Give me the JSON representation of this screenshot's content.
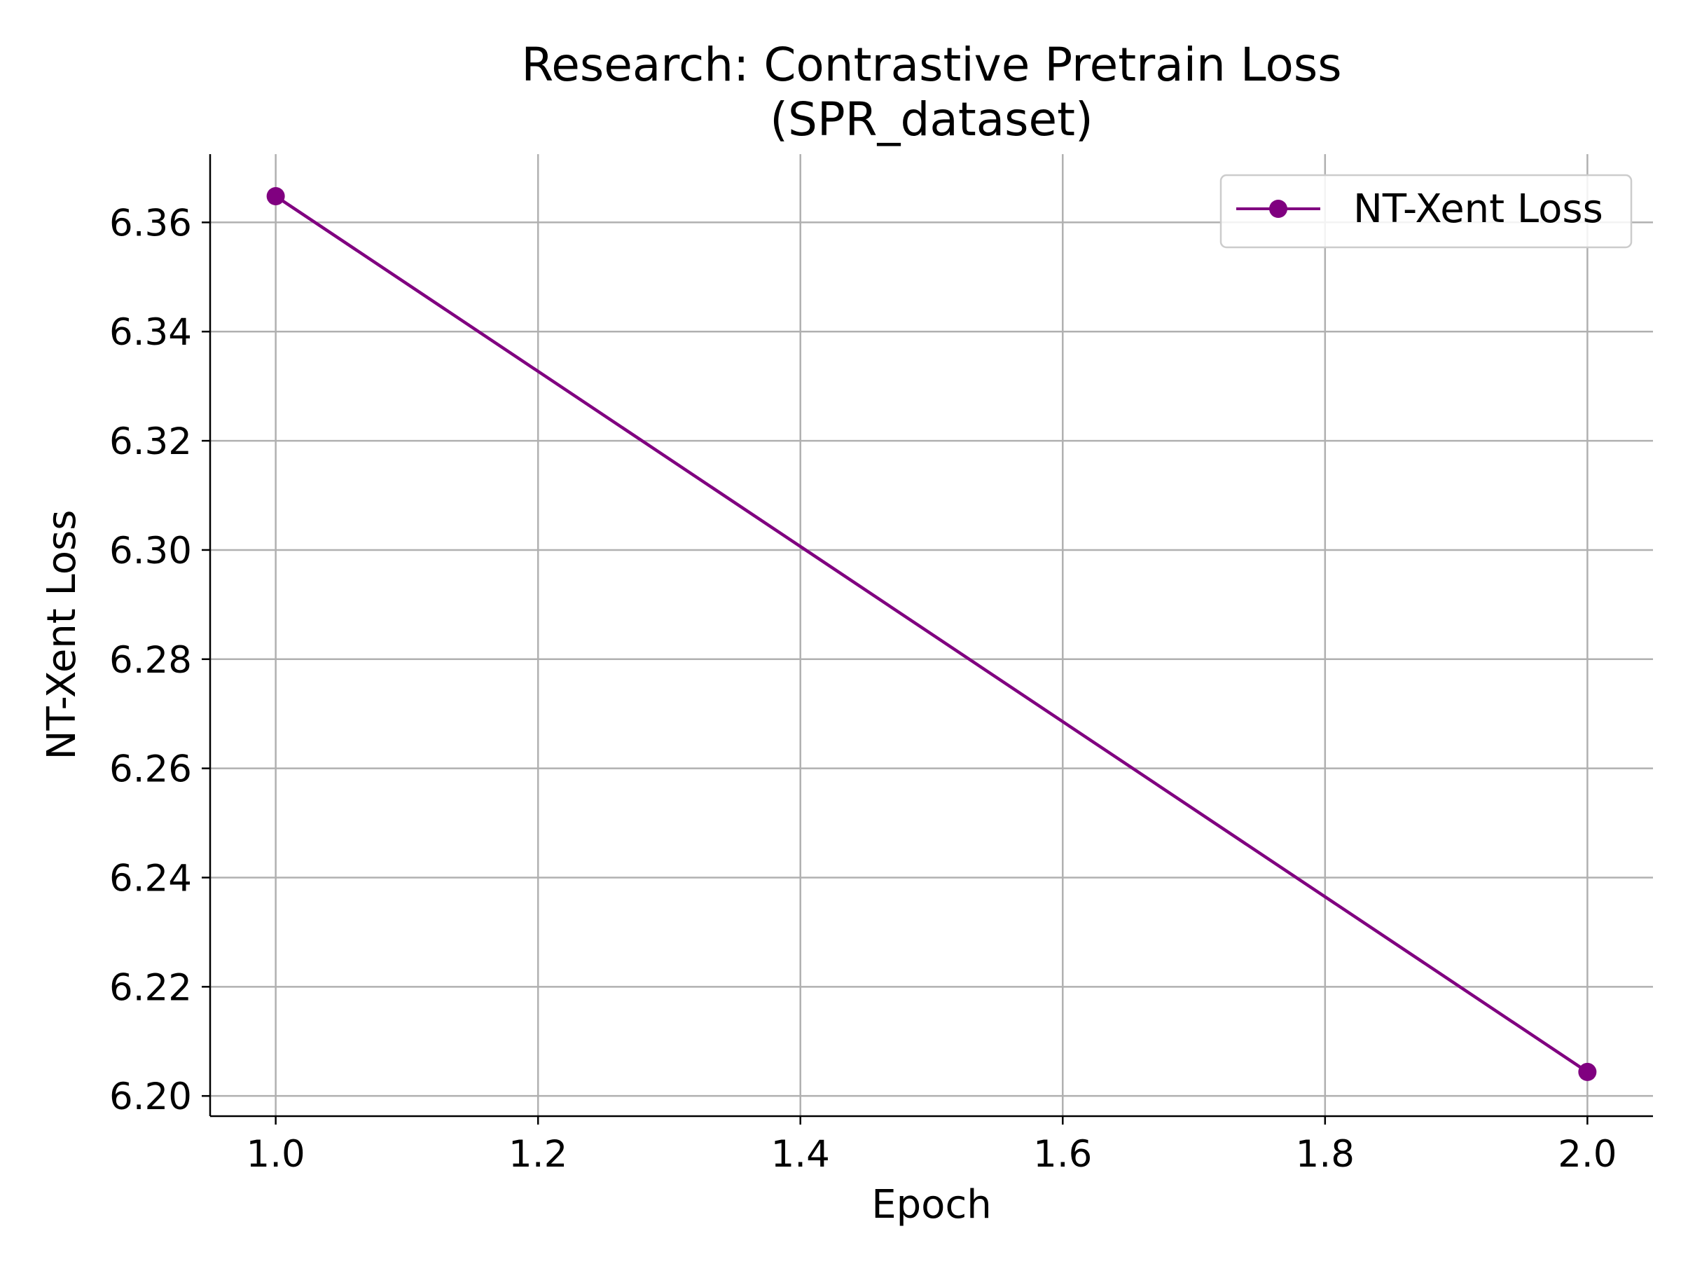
{
  "chart_data": {
    "type": "line",
    "title_line1": "Research: Contrastive Pretrain Loss",
    "title_line2": "(SPR_dataset)",
    "xlabel": "Epoch",
    "ylabel": "NT-Xent Loss",
    "xlim": [
      0.95,
      2.05
    ],
    "ylim": [
      6.1963,
      6.3725
    ],
    "x_ticks": [
      1.0,
      1.2,
      1.4,
      1.6,
      1.8,
      2.0
    ],
    "x_tick_labels": [
      "1.0",
      "1.2",
      "1.4",
      "1.6",
      "1.8",
      "2.0"
    ],
    "y_ticks": [
      6.2,
      6.22,
      6.24,
      6.26,
      6.28,
      6.3,
      6.32,
      6.34,
      6.36
    ],
    "y_tick_labels": [
      "6.20",
      "6.22",
      "6.24",
      "6.26",
      "6.28",
      "6.30",
      "6.32",
      "6.34",
      "6.36"
    ],
    "grid": true,
    "legend_position": "top-right",
    "series": [
      {
        "name": "NT-Xent Loss",
        "color": "#800080",
        "marker": "circle",
        "x": [
          1.0,
          2.0
        ],
        "y": [
          6.3648,
          6.2044
        ]
      }
    ]
  }
}
